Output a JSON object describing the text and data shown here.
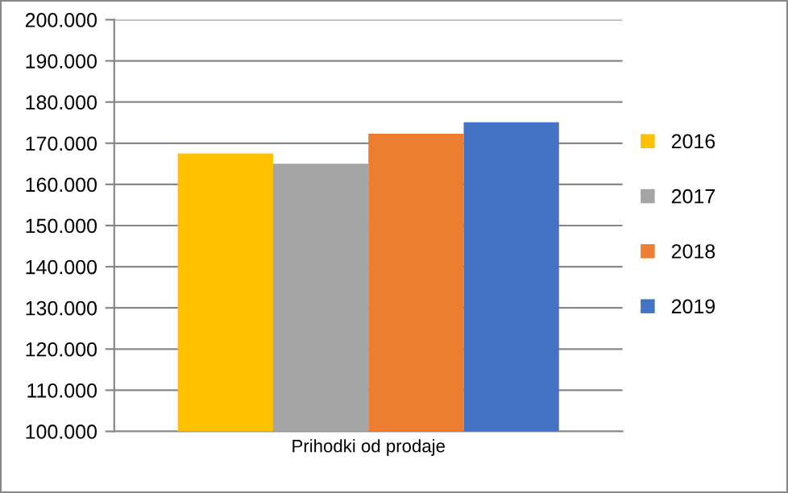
{
  "chart_data": {
    "type": "bar",
    "categories": [
      "Prihodki od prodaje"
    ],
    "series": [
      {
        "name": "2016",
        "color": "#ffc000",
        "values": [
          167500
        ]
      },
      {
        "name": "2017",
        "color": "#a5a5a5",
        "values": [
          165000
        ]
      },
      {
        "name": "2018",
        "color": "#ed7d31",
        "values": [
          172300
        ]
      },
      {
        "name": "2019",
        "color": "#4472c4",
        "values": [
          175100
        ]
      }
    ],
    "ylim": [
      100000,
      200000
    ],
    "yticks": [
      {
        "value": 100000,
        "label": "100.000"
      },
      {
        "value": 110000,
        "label": "110.000"
      },
      {
        "value": 120000,
        "label": "120.000"
      },
      {
        "value": 130000,
        "label": "130.000"
      },
      {
        "value": 140000,
        "label": "140.000"
      },
      {
        "value": 150000,
        "label": "150.000"
      },
      {
        "value": 160000,
        "label": "160.000"
      },
      {
        "value": 170000,
        "label": "170.000"
      },
      {
        "value": 180000,
        "label": "180.000"
      },
      {
        "value": 190000,
        "label": "190.000"
      },
      {
        "value": 200000,
        "label": "200.000"
      }
    ],
    "grid": "y",
    "legend": "right"
  }
}
